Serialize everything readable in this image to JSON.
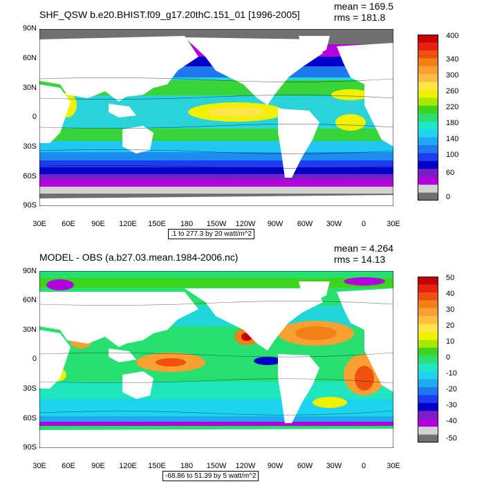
{
  "panels": [
    {
      "title": "SHF_QSW b.e20.BHIST.f09_g17.20thC.151_01 [1996-2005]",
      "mean_text": "mean = 169.5",
      "rms_text": "rms = 181.8",
      "y_ticks": [
        "90N",
        "60N",
        "30N",
        "0",
        "30S",
        "60S",
        "90S"
      ],
      "x_ticks": [
        "30E",
        "60E",
        "90E",
        "120E",
        "150E",
        "180",
        "150W",
        "120W",
        "90W",
        "60W",
        "30W",
        "0",
        "30E"
      ],
      "contour_info": ".1 to 277.3 by 20 watt/m^2",
      "colorbar_labels": [
        "400",
        "340",
        "300",
        "260",
        "220",
        "180",
        "140",
        "100",
        "60",
        "0"
      ],
      "colorbar_colors": [
        "#c80000",
        "#e82010",
        "#f05010",
        "#f37f17",
        "#f8a032",
        "#fbbf3e",
        "#fde54a",
        "#f0f000",
        "#a8e800",
        "#3cd41e",
        "#28e070",
        "#1ee8c8",
        "#1ed3f0",
        "#1ea8f0",
        "#1e78f0",
        "#1e3cf0",
        "#0000c8",
        "#7a1ec8",
        "#b400dc",
        "#d2d2d2",
        "#707070"
      ]
    },
    {
      "title": "MODEL - OBS (a.b27.03.mean.1984-2006.nc)",
      "mean_text": "mean = 4.264",
      "rms_text": "rms = 14.13",
      "y_ticks": [
        "90N",
        "60N",
        "30N",
        "0",
        "30S",
        "60S",
        "90S"
      ],
      "x_ticks": [
        "30E",
        "60E",
        "90E",
        "120E",
        "150E",
        "180",
        "150W",
        "120W",
        "90W",
        "60W",
        "30W",
        "0",
        "30E"
      ],
      "contour_info": "-68.86 to 51.39 by 5 watt/m^2",
      "colorbar_labels": [
        "50",
        "40",
        "30",
        "20",
        "10",
        "0",
        "-10",
        "-20",
        "-30",
        "-40",
        "-50"
      ],
      "colorbar_colors": [
        "#c80000",
        "#e82010",
        "#f05010",
        "#f37f17",
        "#f8a032",
        "#fbbf3e",
        "#fde54a",
        "#f0f000",
        "#a8e800",
        "#3cd41e",
        "#28e070",
        "#1ee8c8",
        "#1ed3f0",
        "#1ea8f0",
        "#1e78f0",
        "#1e3cf0",
        "#0000c8",
        "#7a1ec8",
        "#b400dc",
        "#d2d2d2",
        "#707070"
      ]
    }
  ]
}
